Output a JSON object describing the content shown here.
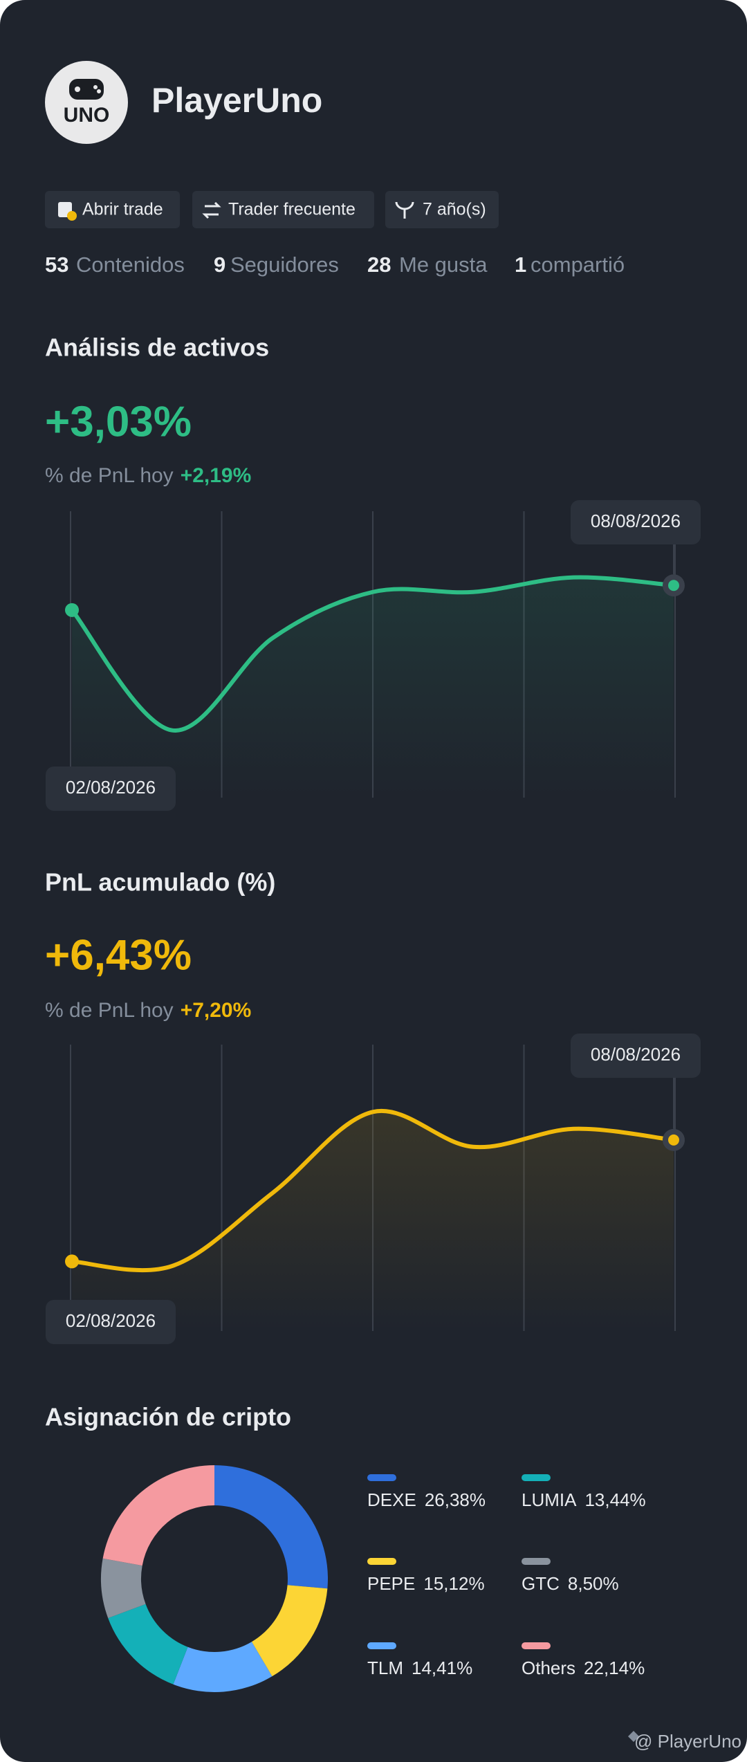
{
  "profile": {
    "avatar_text": "UNO",
    "name": "PlayerUno",
    "tags": [
      "Abrir trade",
      "Trader frecuente",
      "7 año(s)"
    ],
    "stats": [
      {
        "count": 53,
        "label": "Contenidos"
      },
      {
        "count": 9,
        "label": "Seguidores"
      },
      {
        "count": 28,
        "label": "Me gusta"
      },
      {
        "count": 1,
        "label": "compartió"
      }
    ]
  },
  "chart_data": [
    {
      "type": "line",
      "title": "Análisis de activos",
      "headline": "+3,03%",
      "subtitle": "% de PnL hoy",
      "subtitle_value": "+2,19%",
      "x": [
        "02/08/2026",
        null,
        null,
        null,
        null,
        null,
        "08/08/2026"
      ],
      "values": [
        65.5,
        23.5,
        55.7,
        71.8,
        71.8,
        76.9,
        74.1
      ],
      "ylim": [
        0,
        100
      ],
      "color": "#2ebd85"
    },
    {
      "type": "line",
      "title": "PnL acumulado (%)",
      "headline": "+6,43%",
      "subtitle": "% de PnL hoy",
      "subtitle_value": "+7,20%",
      "x": [
        "02/08/2026",
        null,
        null,
        null,
        null,
        null,
        "08/08/2026"
      ],
      "values": [
        24.3,
        22.7,
        48.2,
        76.5,
        64.3,
        70.6,
        66.7
      ],
      "ylim": [
        0,
        100
      ],
      "color": "#f0b90b"
    },
    {
      "type": "pie",
      "title": "Asignación de cripto",
      "categories": [
        "DEXE",
        "PEPE",
        "TLM",
        "LUMIA",
        "GTC",
        "Others"
      ],
      "values": [
        26.38,
        15.12,
        14.41,
        13.44,
        8.5,
        22.14
      ],
      "value_labels": [
        "26,38%",
        "15,12%",
        "14,41%",
        "13,44%",
        "8,50%",
        "22,14%"
      ],
      "colors": [
        "#2f6fdc",
        "#fcd535",
        "#5ea9ff",
        "#14b0b8",
        "#8a939e",
        "#f59aa0"
      ]
    }
  ],
  "footer": {
    "watermark": "@ PlayerUno"
  }
}
